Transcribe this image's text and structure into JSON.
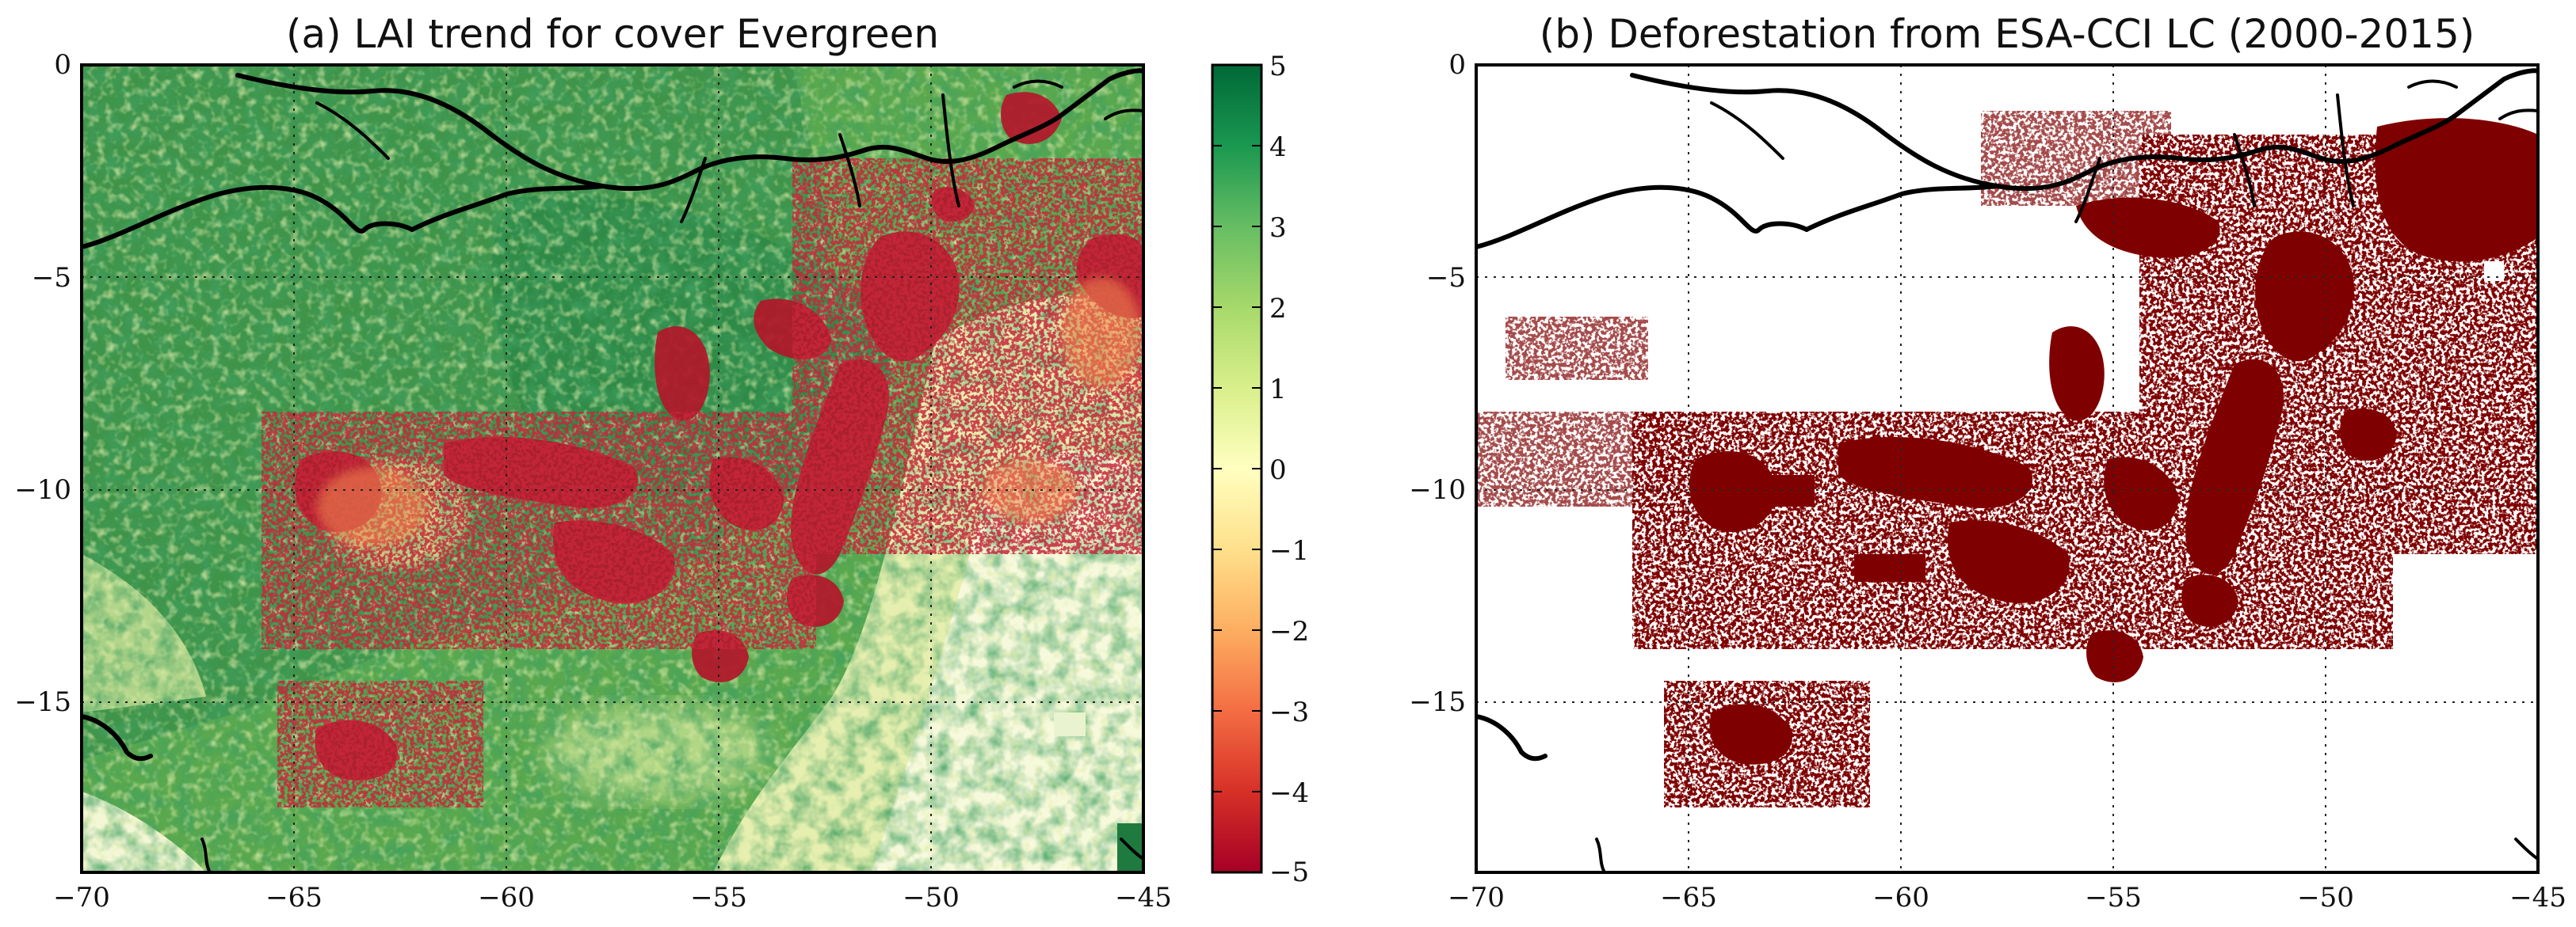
{
  "figure": {
    "panels": [
      {
        "id": "a",
        "title": "(a) LAI trend for cover Evergreen",
        "variable": "LAI trend",
        "cover": "Evergreen",
        "colormap": "RdYlGn",
        "colorbar": {
          "min": -5,
          "max": 5,
          "ticks": [
            "5",
            "4",
            "3",
            "2",
            "1",
            "0",
            "−1",
            "−2",
            "−3",
            "−4",
            "−5"
          ]
        }
      },
      {
        "id": "b",
        "title": "(b) Deforestation from ESA-CCI LC (2000-2015)",
        "variable": "Deforestation",
        "source": "ESA-CCI LC (2000-2015)",
        "color": "#7f0000"
      }
    ],
    "axes": {
      "x_ticks": [
        "−70",
        "−65",
        "−60",
        "−55",
        "−50",
        "−45"
      ],
      "y_ticks": [
        "0",
        "−5",
        "−10",
        "−15"
      ],
      "lon_range": [
        -70,
        -45
      ],
      "lat_range": [
        -19,
        0
      ],
      "grid": "dotted"
    }
  }
}
